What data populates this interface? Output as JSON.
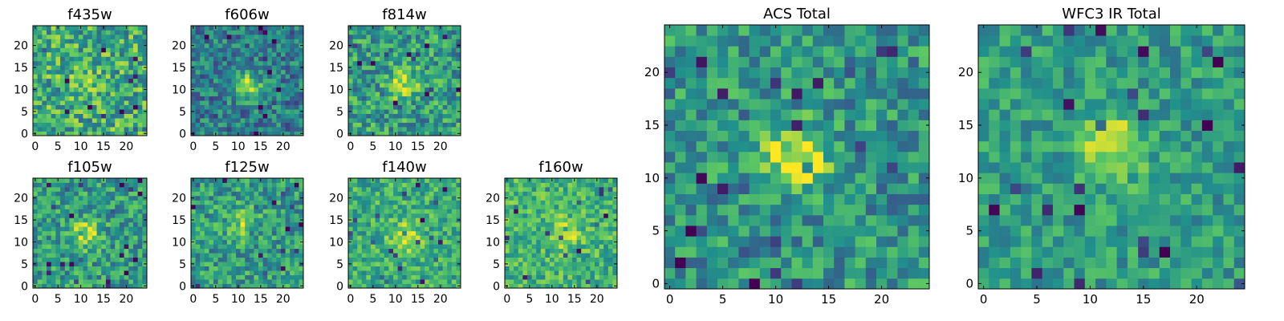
{
  "colormap": [
    "#440154",
    "#3b528b",
    "#21918c",
    "#5ec962",
    "#fde725"
  ],
  "chart_data": [
    {
      "type": "heatmap",
      "title": "f435w",
      "xlim": [
        0,
        25
      ],
      "ylim": [
        0,
        25
      ],
      "xticks": [
        "0",
        "5",
        "10",
        "15",
        "20"
      ],
      "yticks": [
        "0",
        "5",
        "10",
        "15",
        "20"
      ],
      "grid": false,
      "source_peak": [
        11,
        12
      ],
      "source_strength": 0.12,
      "noise": 0.55,
      "base": 0.62
    },
    {
      "type": "heatmap",
      "title": "f606w",
      "xlim": [
        0,
        25
      ],
      "ylim": [
        0,
        25
      ],
      "xticks": [
        "0",
        "5",
        "10",
        "15",
        "20"
      ],
      "yticks": [
        "0",
        "5",
        "10",
        "15",
        "20"
      ],
      "grid": false,
      "source_peak": [
        12,
        11
      ],
      "source_strength": 0.5,
      "noise": 0.45,
      "base": 0.42
    },
    {
      "type": "heatmap",
      "title": "f814w",
      "xlim": [
        0,
        25
      ],
      "ylim": [
        0,
        25
      ],
      "xticks": [
        "0",
        "5",
        "10",
        "15",
        "20"
      ],
      "yticks": [
        "0",
        "5",
        "10",
        "15",
        "20"
      ],
      "grid": false,
      "source_peak": [
        12,
        11
      ],
      "source_strength": 0.35,
      "noise": 0.5,
      "base": 0.55
    },
    {
      "type": "heatmap",
      "title": "f105w",
      "xlim": [
        0,
        25
      ],
      "ylim": [
        0,
        25
      ],
      "xticks": [
        "0",
        "5",
        "10",
        "15",
        "20"
      ],
      "yticks": [
        "0",
        "5",
        "10",
        "15",
        "20"
      ],
      "grid": false,
      "source_peak": [
        11,
        12
      ],
      "source_strength": 0.35,
      "noise": 0.45,
      "base": 0.55
    },
    {
      "type": "heatmap",
      "title": "f125w",
      "xlim": [
        0,
        25
      ],
      "ylim": [
        0,
        25
      ],
      "xticks": [
        "0",
        "5",
        "10",
        "15",
        "20"
      ],
      "yticks": [
        "0",
        "5",
        "10",
        "15",
        "20"
      ],
      "grid": false,
      "source_peak": [
        11,
        14
      ],
      "source_strength": 0.3,
      "noise": 0.45,
      "base": 0.55
    },
    {
      "type": "heatmap",
      "title": "f140w",
      "xlim": [
        0,
        25
      ],
      "ylim": [
        0,
        25
      ],
      "xticks": [
        "0",
        "5",
        "10",
        "15",
        "20"
      ],
      "yticks": [
        "0",
        "5",
        "10",
        "15",
        "20"
      ],
      "grid": false,
      "source_peak": [
        12,
        11
      ],
      "source_strength": 0.35,
      "noise": 0.4,
      "base": 0.62
    },
    {
      "type": "heatmap",
      "title": "f160w",
      "xlim": [
        0,
        25
      ],
      "ylim": [
        0,
        25
      ],
      "xticks": [
        "0",
        "5",
        "10",
        "15",
        "20"
      ],
      "yticks": [
        "0",
        "5",
        "10",
        "15",
        "20"
      ],
      "grid": false,
      "source_peak": [
        13,
        12
      ],
      "source_strength": 0.3,
      "noise": 0.4,
      "base": 0.65
    },
    {
      "type": "heatmap",
      "title": "ACS Total",
      "xlim": [
        0,
        25
      ],
      "ylim": [
        0,
        25
      ],
      "xticks": [
        "0",
        "5",
        "10",
        "15",
        "20"
      ],
      "yticks": [
        "0",
        "5",
        "10",
        "15",
        "20"
      ],
      "grid": false,
      "source_peak": [
        12,
        12
      ],
      "source_strength": 0.45,
      "noise": 0.45,
      "base": 0.52
    },
    {
      "type": "heatmap",
      "title": "WFC3 IR Total",
      "xlim": [
        0,
        25
      ],
      "ylim": [
        0,
        25
      ],
      "xticks": [
        "0",
        "5",
        "10",
        "15",
        "20"
      ],
      "yticks": [
        "0",
        "5",
        "10",
        "15",
        "20"
      ],
      "grid": false,
      "source_peak": [
        12,
        13
      ],
      "source_strength": 0.4,
      "noise": 0.35,
      "base": 0.55
    }
  ]
}
